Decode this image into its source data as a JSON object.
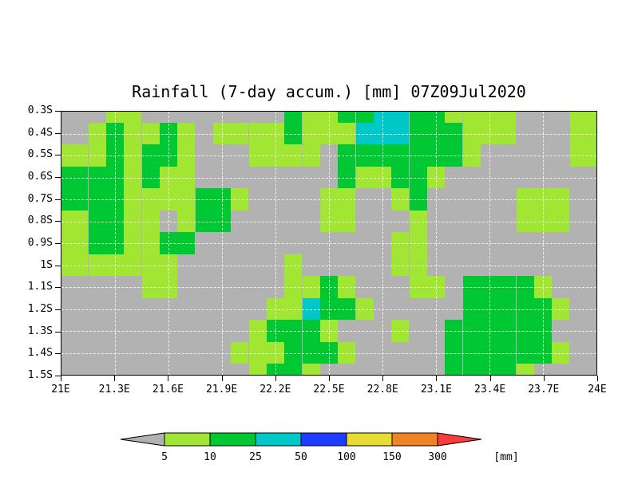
{
  "chart_data": {
    "type": "heatmap",
    "title": "Rainfall (7-day accum.) [mm] 07Z09Jul2020",
    "x_ticks": [
      "21E",
      "21.3E",
      "21.6E",
      "21.9E",
      "22.2E",
      "22.5E",
      "22.8E",
      "23.1E",
      "23.4E",
      "23.7E",
      "24E"
    ],
    "y_ticks": [
      "0.3S",
      "0.4S",
      "0.5S",
      "0.6S",
      "0.7S",
      "0.8S",
      "0.9S",
      "1S",
      "1.1S",
      "1.2S",
      "1.3S",
      "1.4S",
      "1.5S"
    ],
    "lon_range_deg_east": [
      21.0,
      24.0
    ],
    "lat_range_deg_south": [
      0.3,
      1.5
    ],
    "cell_size_deg": 0.1,
    "grid_encoding": {
      "0": "less than 5 mm (gray)",
      "1": "5-10 mm (light green)",
      "2": "10-25 mm (green)",
      "3": "25-50 mm (cyan)"
    },
    "grid": [
      "0001100000000211223322111100011",
      "0012112101111211133322211100011",
      "1112122100011110222222210000011",
      "2222121100000000211221000000000",
      "2222111122100001100120000011100",
      "1122110122000001100010000011100",
      "1122112200000000000110000000000",
      "1111111000000100000110000000000",
      "0000011000000112100011022221000",
      "0000000000001132210000022222100",
      "0000000000012221000100222222000",
      "0000000000111222100000222222100",
      "0000000000012210000000222210000"
    ],
    "palette": {
      "0": "#b2b2b2",
      "1": "#a0e632",
      "2": "#00c832",
      "3": "#00c8c8"
    },
    "plot_background": "#b2b2b2",
    "gridlines": {
      "style": "dashed",
      "x_every_deg": 0.3,
      "y_every_deg": 0.1
    },
    "legend": {
      "labels": [
        "5",
        "10",
        "25",
        "50",
        "100",
        "150",
        "300"
      ],
      "unit_label": "[mm]",
      "colors": [
        "#b2b2b2",
        "#a0e632",
        "#00c832",
        "#00c8c8",
        "#1e3cff",
        "#e6dc32",
        "#f08228",
        "#fa3c3c"
      ]
    }
  }
}
